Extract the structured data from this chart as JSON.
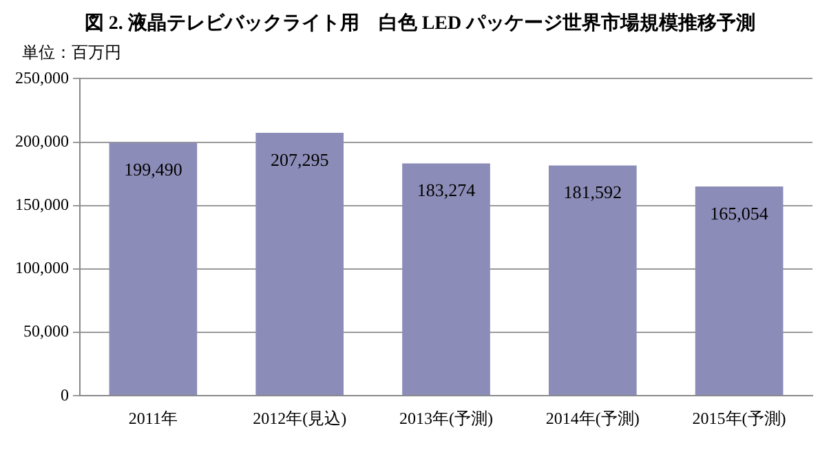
{
  "chart_data": {
    "type": "bar",
    "title": "図 2. 液晶テレビバックライト用　白色 LED パッケージ世界市場規模推移予測",
    "annotations": [
      "単位：百万円"
    ],
    "categories": [
      "2011年",
      "2012年(見込)",
      "2013年(予測)",
      "2014年(予測)",
      "2015年(予測)"
    ],
    "values": [
      199490,
      207295,
      183274,
      181592,
      165054
    ],
    "value_labels": [
      "199,490",
      "207,295",
      "183,274",
      "181,592",
      "165,054"
    ],
    "color": "#8c8cb8",
    "ylim": [
      0,
      250000
    ],
    "yticks": [
      0,
      {
        "value": 50000,
        "label": "50,000"
      },
      {
        "value": 100000,
        "label": "100,000"
      },
      {
        "value": 150000,
        "label": "150,000"
      },
      {
        "value": 200000,
        "label": "200,000"
      },
      {
        "value": 250000,
        "label": "250,000"
      }
    ],
    "grid": "y",
    "legend": false
  }
}
